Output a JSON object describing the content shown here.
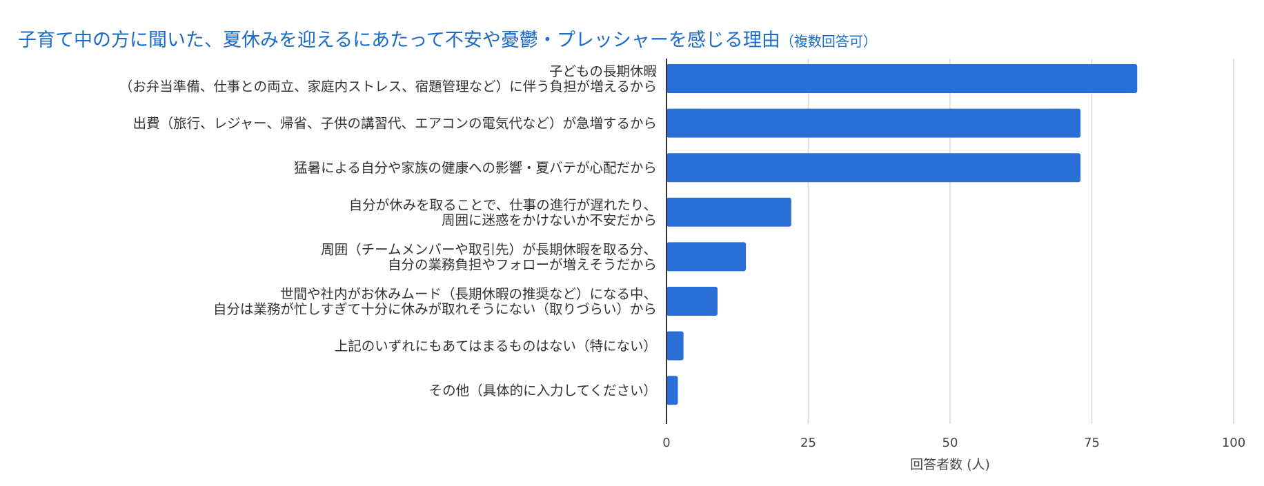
{
  "title": "子育て中の方に聞いた、夏休みを迎えるにあたって不安や憂鬱・プレッシャーを感じる理由",
  "subtitle": "（複数回答可）",
  "colors": {
    "bar": "#2a6fd6",
    "title": "#1a6cc8",
    "grid": "#d9d9d9",
    "axis": "#333333"
  },
  "chart_data": {
    "type": "bar",
    "orientation": "horizontal",
    "title": "子育て中の方に聞いた、夏休みを迎えるにあたって不安や憂鬱・プレッシャーを感じる理由",
    "subtitle": "（複数回答可）",
    "categories": [
      [
        "子どもの長期休暇",
        "（お弁当準備、仕事との両立、家庭内ストレス、宿題管理など）に伴う負担が増えるから"
      ],
      [
        "出費（旅行、レジャー、帰省、子供の講習代、エアコンの電気代など）が急増するから"
      ],
      [
        "猛暑による自分や家族の健康への影響・夏バテが心配だから"
      ],
      [
        "自分が休みを取ることで、仕事の進行が遅れたり、",
        "周囲に迷惑をかけないか不安だから"
      ],
      [
        "周囲（チームメンバーや取引先）が長期休暇を取る分、",
        "自分の業務負担やフォローが増えそうだから"
      ],
      [
        "世間や社内がお休みムード（長期休暇の推奨など）になる中、",
        "自分は業務が忙しすぎて十分に休みが取れそうにない（取りづらい）から"
      ],
      [
        "上記のいずれにもあてはまるものはない（特にない）"
      ],
      [
        "その他（具体的に入力してください）"
      ]
    ],
    "values": [
      83,
      73,
      73,
      22,
      14,
      9,
      3,
      2
    ],
    "xlabel": "回答者数 (人)",
    "ylabel": "",
    "xlim": [
      0,
      100
    ],
    "xticks": [
      0,
      25,
      50,
      75,
      100
    ],
    "grid": true,
    "legend": "none"
  }
}
